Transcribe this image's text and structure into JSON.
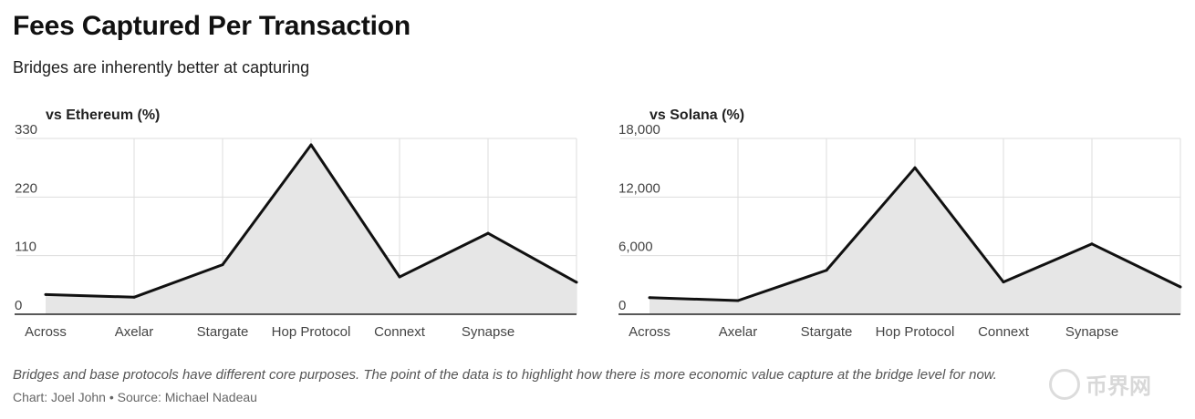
{
  "title": "Fees Captured Per Transaction",
  "subtitle": "Bridges are inherently better at capturing",
  "chart_data": [
    {
      "type": "area",
      "title": "vs Ethereum (%)",
      "categories": [
        "Across",
        "Axelar",
        "Stargate",
        "Hop Protocol",
        "Connext",
        "Synapse",
        ""
      ],
      "series": [
        {
          "values": [
            37,
            32,
            93,
            318,
            70,
            152,
            60
          ]
        }
      ],
      "ylim": [
        0,
        330
      ],
      "yticks": [
        0,
        110,
        220,
        330
      ],
      "ytick_labels": [
        "0",
        "110",
        "220",
        "330"
      ],
      "grid": true,
      "legend": "none"
    },
    {
      "type": "area",
      "title": "vs Solana (%)",
      "categories": [
        "Across",
        "Axelar",
        "Stargate",
        "Hop Protocol",
        "Connext",
        "Synapse",
        ""
      ],
      "series": [
        {
          "values": [
            1700,
            1400,
            4500,
            15000,
            3300,
            7200,
            2800
          ]
        }
      ],
      "ylim": [
        0,
        18000
      ],
      "yticks": [
        0,
        6000,
        12000,
        18000
      ],
      "ytick_labels": [
        "0",
        "6,000",
        "12,000",
        "18,000"
      ],
      "grid": true,
      "legend": "none"
    }
  ],
  "footnote": "Bridges and base protocols have different core purposes. The point of the data is to highlight how there is more economic value capture at the bridge level for now.",
  "credit": "Chart: Joel John • Source: Michael Nadeau",
  "watermark": {
    "text": "币界网",
    "icon": "coin-logo-icon"
  },
  "colors": {
    "line": "#111111",
    "area": "#e6e6e6",
    "grid": "#dddddd"
  }
}
